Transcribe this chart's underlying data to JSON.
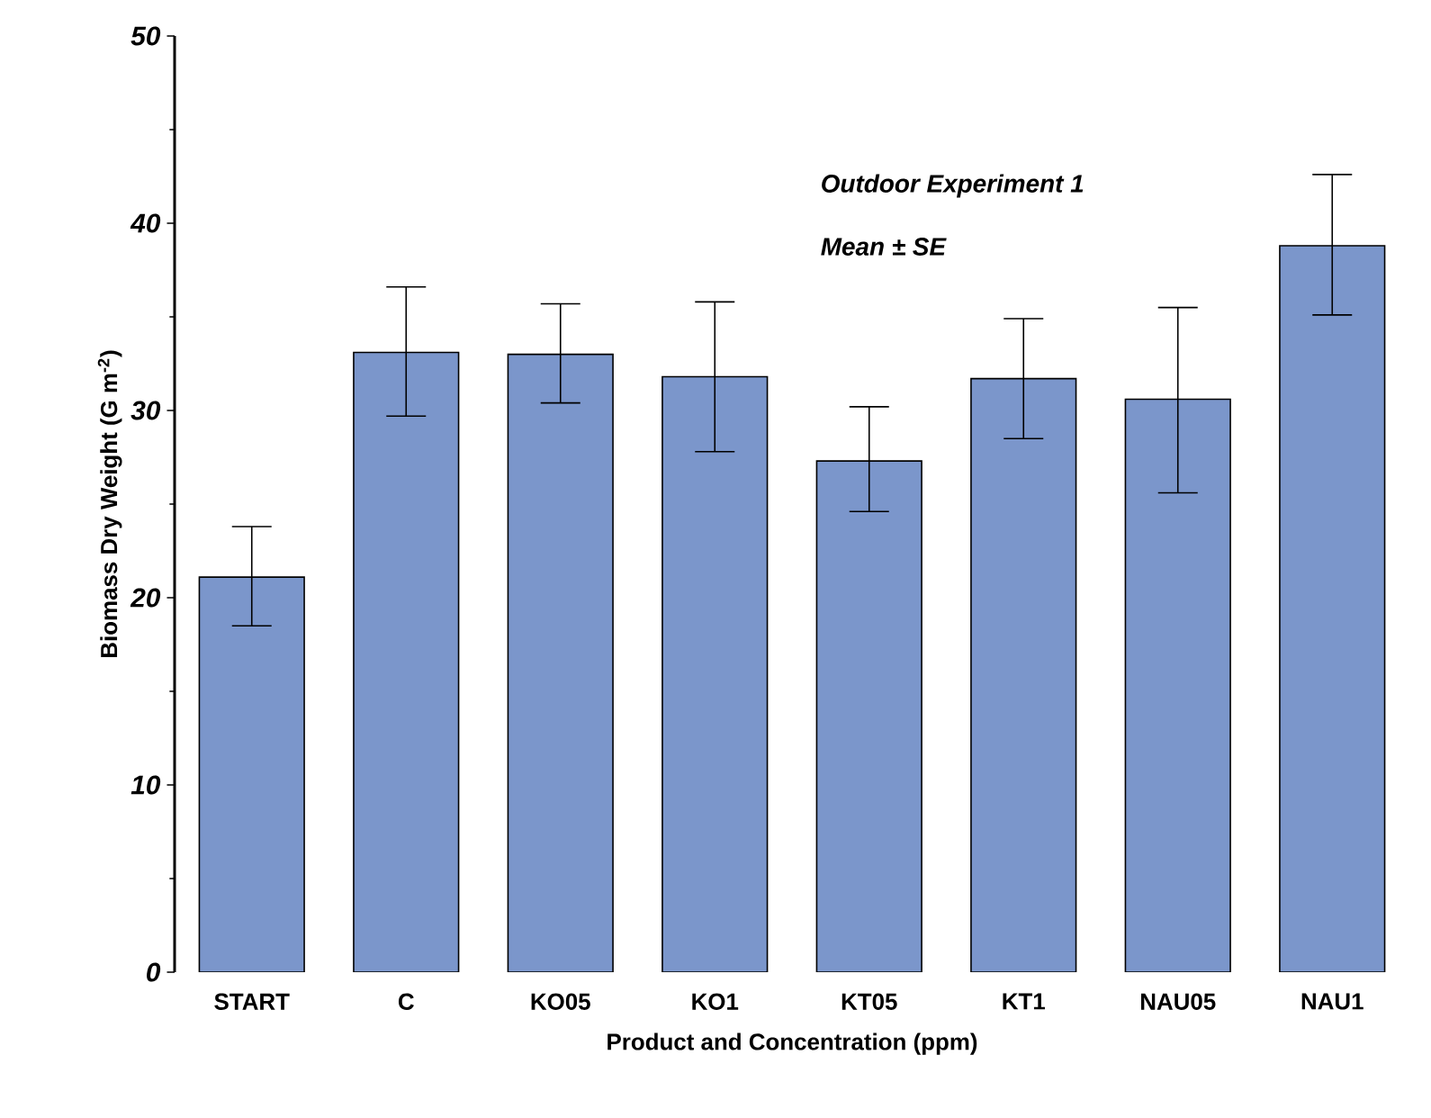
{
  "chart_data": {
    "type": "bar",
    "categories": [
      "START",
      "C",
      "KO05",
      "KO1",
      "KT05",
      "KT1",
      "NAU05",
      "NAU1"
    ],
    "values": [
      21.1,
      33.1,
      33.0,
      31.8,
      27.3,
      31.7,
      30.6,
      38.8
    ],
    "errors": [
      [
        18.5,
        23.8
      ],
      [
        29.7,
        36.6
      ],
      [
        30.4,
        35.7
      ],
      [
        27.8,
        35.8
      ],
      [
        24.6,
        30.2
      ],
      [
        28.5,
        34.9
      ],
      [
        25.6,
        35.5
      ],
      [
        35.1,
        42.6
      ]
    ],
    "color": "#7b96cb",
    "xlabel": "Product and Concentration (ppm)",
    "ylabel": "Biomass Dry Weight (G m$^{-2}$)",
    "ylim": [
      0,
      50
    ],
    "yticks": [
      0,
      10,
      20,
      30,
      40,
      50
    ],
    "annotations": [
      "Outdoor Experiment  1",
      "Mean ± SE"
    ]
  }
}
